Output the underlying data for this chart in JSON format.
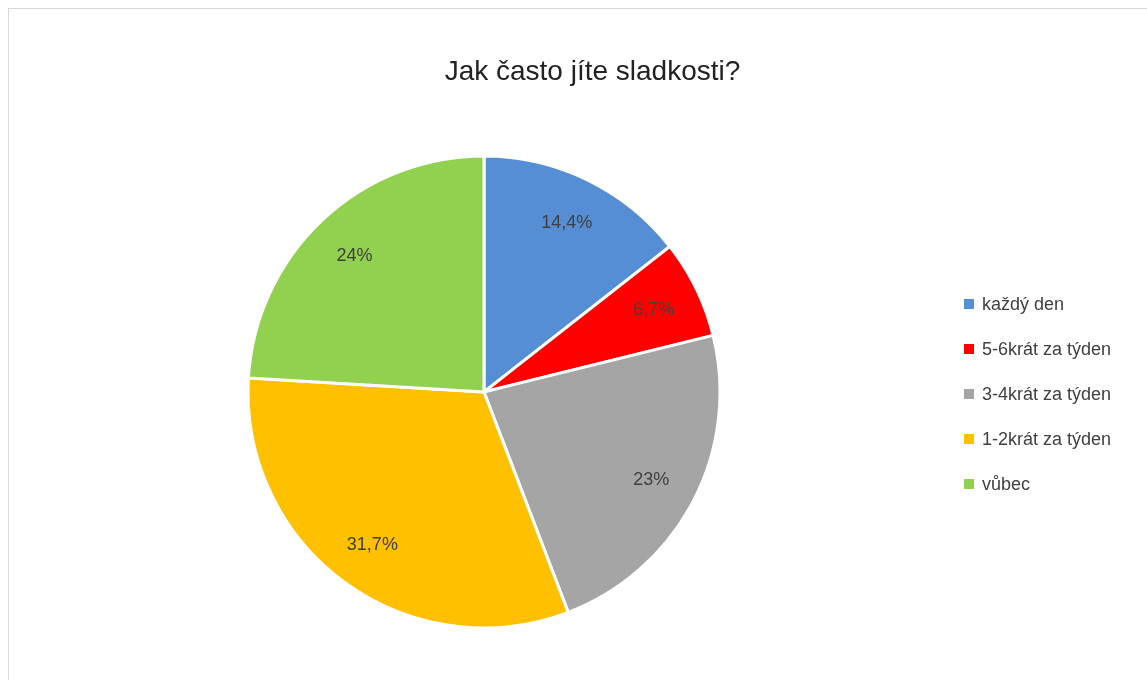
{
  "chart_data": {
    "type": "pie",
    "title": "Jak často jíte sladkosti?",
    "categories": [
      "každý den",
      "5-6krát za týden",
      "3-4krát za týden",
      "1-2krát za týden",
      "vůbec"
    ],
    "values": [
      14.4,
      6.7,
      23,
      31.7,
      24
    ],
    "value_labels": [
      "14,4%",
      "6,7%",
      "23%",
      "31,7%",
      "24%"
    ],
    "colors": [
      "#558ed5",
      "#ff0000",
      "#a5a5a5",
      "#ffc000",
      "#92d050"
    ],
    "legend": "right"
  }
}
